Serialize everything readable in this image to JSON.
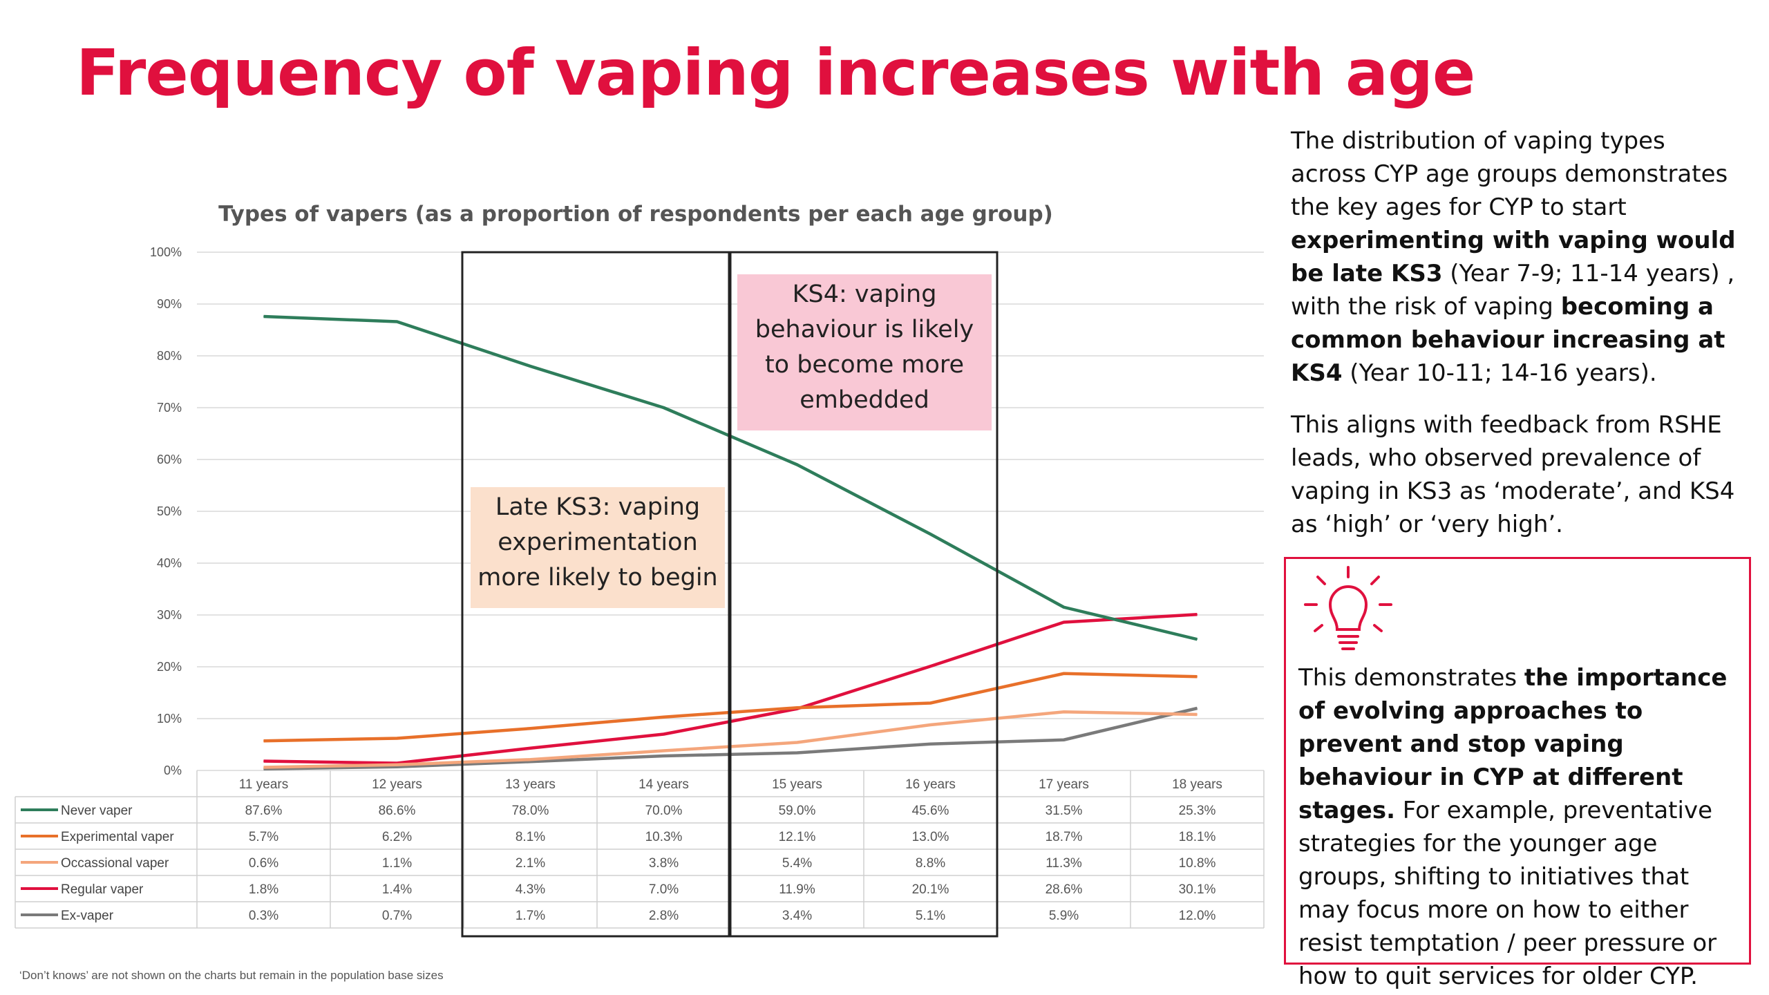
{
  "title": "Frequency of vaping increases with age",
  "side_text": {
    "p1": {
      "a": "The distribution of vaping types across CYP age groups demonstrates the key ages for CYP to start ",
      "b": "experimenting with vaping would be late KS3",
      "c": " (Year 7-9; 11-14 years) , with the risk of vaping ",
      "d": "becoming a common behaviour increasing at KS4",
      "e": " (Year 10-11; 14-16 years)."
    },
    "p2": "This aligns with feedback from RSHE leads, who observed prevalence of vaping in KS3 as ‘moderate’, and KS4 as ‘high’ or ‘very high’."
  },
  "callout": {
    "icon": "lightbulb-icon",
    "a": "This demonstrates ",
    "b": "the importance of evolving approaches to prevent and stop vaping behaviour in CYP at different stages.",
    "c": " For example, preventative strategies for the younger age groups, shifting to initiatives that may focus more on how to either resist temptation / peer pressure or how to quit services for older CYP."
  },
  "footnote": "‘Don’t knows’ are not shown on the charts but remain in the population base sizes",
  "chart_data": {
    "type": "line",
    "title": "Types of vapers (as a proportion of respondents per each age group)",
    "categories": [
      "11 years",
      "12 years",
      "13 years",
      "14 years",
      "15 years",
      "16 years",
      "17 years",
      "18 years"
    ],
    "y_ticks": [
      "0%",
      "10%",
      "20%",
      "30%",
      "40%",
      "50%",
      "60%",
      "70%",
      "80%",
      "90%",
      "100%"
    ],
    "ylim": [
      0,
      100
    ],
    "grid": true,
    "legend": "data table below chart",
    "series": [
      {
        "name": "Never vaper",
        "color": "#2e7d5b",
        "values": [
          87.6,
          86.6,
          78.0,
          70.0,
          59.0,
          45.6,
          31.5,
          25.3
        ],
        "labels": [
          "87.6%",
          "86.6%",
          "78.0%",
          "70.0%",
          "59.0%",
          "45.6%",
          "31.5%",
          "25.3%"
        ]
      },
      {
        "name": "Experimental vaper",
        "color": "#e8702a",
        "values": [
          5.7,
          6.2,
          8.1,
          10.3,
          12.1,
          13.0,
          18.7,
          18.1
        ],
        "labels": [
          "5.7%",
          "6.2%",
          "8.1%",
          "10.3%",
          "12.1%",
          "13.0%",
          "18.7%",
          "18.1%"
        ]
      },
      {
        "name": "Occassional vaper",
        "color": "#f4a67c",
        "values": [
          0.6,
          1.1,
          2.1,
          3.8,
          5.4,
          8.8,
          11.3,
          10.8
        ],
        "labels": [
          "0.6%",
          "1.1%",
          "2.1%",
          "3.8%",
          "5.4%",
          "8.8%",
          "11.3%",
          "10.8%"
        ]
      },
      {
        "name": "Regular vaper",
        "color": "#e0103e",
        "values": [
          1.8,
          1.4,
          4.3,
          7.0,
          11.9,
          20.1,
          28.6,
          30.1
        ],
        "labels": [
          "1.8%",
          "1.4%",
          "4.3%",
          "7.0%",
          "11.9%",
          "20.1%",
          "28.6%",
          "30.1%"
        ]
      },
      {
        "name": "Ex-vaper",
        "color": "#7a7a7a",
        "values": [
          0.3,
          0.7,
          1.7,
          2.8,
          3.4,
          5.1,
          5.9,
          12.0
        ],
        "labels": [
          "0.3%",
          "0.7%",
          "1.7%",
          "2.8%",
          "3.4%",
          "5.1%",
          "5.9%",
          "12.0%"
        ]
      }
    ],
    "annotations": [
      {
        "text_lines": [
          "Late KS3: vaping",
          "experimentation",
          "more likely to begin"
        ],
        "fill": "#fbe0cc",
        "category_start": 2,
        "category_end": 3
      },
      {
        "text_lines": [
          "KS4: vaping",
          "behaviour is likely",
          "to become more",
          "embedded"
        ],
        "fill": "#f9c8d5",
        "category_start": 4,
        "category_end": 5
      }
    ]
  }
}
